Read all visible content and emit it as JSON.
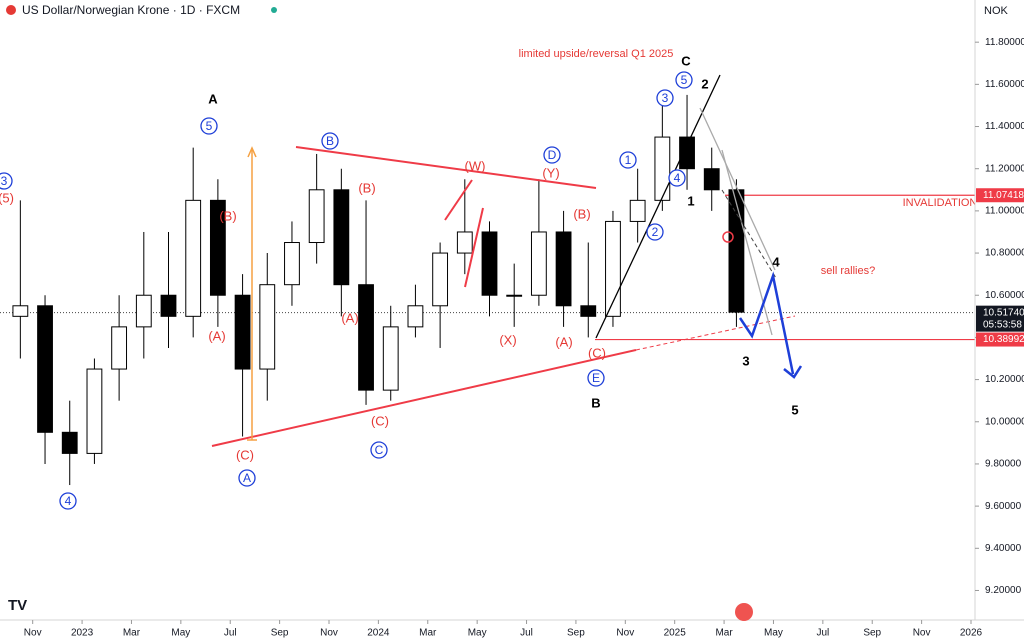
{
  "chart_data": {
    "type": "candlestick",
    "title": "US Dollar/Norwegian Krone · 1D · FXCM",
    "currency": "NOK",
    "color_up": "#ffffff",
    "color_down": "#000000",
    "x": [
      "2022-10",
      "2022-11",
      "2022-12",
      "2023-01",
      "2023-02",
      "2023-03",
      "2023-04",
      "2023-05",
      "2023-06",
      "2023-07",
      "2023-08",
      "2023-09",
      "2023-10",
      "2023-11",
      "2023-12",
      "2024-01",
      "2024-02",
      "2024-03",
      "2024-04",
      "2024-05",
      "2024-06",
      "2024-07",
      "2024-08",
      "2024-09",
      "2024-10",
      "2024-11",
      "2024-12",
      "2025-01",
      "2025-02",
      "2025-03"
    ],
    "open": [
      10.5,
      10.55,
      9.95,
      9.85,
      10.25,
      10.45,
      10.6,
      10.5,
      11.05,
      10.6,
      10.25,
      10.65,
      10.85,
      11.1,
      10.65,
      10.15,
      10.45,
      10.55,
      10.8,
      10.9,
      10.6,
      10.6,
      10.9,
      10.55,
      10.5,
      10.95,
      11.05,
      11.35,
      11.2,
      11.1
    ],
    "high": [
      11.05,
      10.6,
      10.1,
      10.3,
      10.6,
      10.9,
      10.9,
      11.3,
      11.15,
      10.7,
      10.8,
      10.95,
      11.27,
      11.2,
      11.05,
      10.55,
      10.65,
      10.85,
      11.15,
      10.95,
      10.75,
      11.15,
      11.0,
      10.85,
      11.0,
      11.2,
      11.55,
      11.55,
      11.3,
      11.15
    ],
    "low": [
      10.3,
      9.8,
      9.7,
      9.8,
      10.1,
      10.3,
      10.35,
      10.4,
      10.45,
      9.93,
      10.1,
      10.55,
      10.75,
      10.5,
      10.08,
      10.1,
      10.4,
      10.35,
      10.7,
      10.5,
      10.45,
      10.55,
      10.45,
      10.4,
      10.45,
      10.85,
      11.0,
      11.1,
      11.0,
      10.45
    ],
    "close": [
      10.55,
      9.95,
      9.85,
      10.25,
      10.45,
      10.6,
      10.5,
      11.05,
      10.6,
      10.25,
      10.65,
      10.85,
      11.1,
      10.65,
      10.15,
      10.45,
      10.55,
      10.8,
      10.9,
      10.6,
      10.6,
      10.9,
      10.55,
      10.5,
      10.95,
      11.05,
      11.35,
      11.2,
      11.1,
      10.52
    ],
    "xlim": [
      "2022-10",
      "2026-01"
    ],
    "xticks": [
      {
        "value": "2022-11",
        "label": "Nov"
      },
      {
        "value": "2023-01",
        "label": "2023"
      },
      {
        "value": "2023-03",
        "label": "Mar"
      },
      {
        "value": "2023-05",
        "label": "May"
      },
      {
        "value": "2023-07",
        "label": "Jul"
      },
      {
        "value": "2023-09",
        "label": "Sep"
      },
      {
        "value": "2023-11",
        "label": "Nov"
      },
      {
        "value": "2024-01",
        "label": "2024"
      },
      {
        "value": "2024-03",
        "label": "Mar"
      },
      {
        "value": "2024-05",
        "label": "May"
      },
      {
        "value": "2024-07",
        "label": "Jul"
      },
      {
        "value": "2024-09",
        "label": "Sep"
      },
      {
        "value": "2024-11",
        "label": "Nov"
      },
      {
        "value": "2025-01",
        "label": "2025"
      },
      {
        "value": "2025-03",
        "label": "Mar"
      },
      {
        "value": "2025-05",
        "label": "May"
      },
      {
        "value": "2025-07",
        "label": "Jul"
      },
      {
        "value": "2025-09",
        "label": "Sep"
      },
      {
        "value": "2025-11",
        "label": "Nov"
      },
      {
        "value": "2026-01",
        "label": "2026"
      }
    ],
    "ylim": [
      9.06,
      12.0
    ],
    "yticks": [
      {
        "value": 11.8,
        "label": "11.80000"
      },
      {
        "value": 11.6,
        "label": "11.60000"
      },
      {
        "value": 11.4,
        "label": "11.40000"
      },
      {
        "value": 11.2,
        "label": "11.20000"
      },
      {
        "value": 11.0,
        "label": "11.00000"
      },
      {
        "value": 10.8,
        "label": "10.80000"
      },
      {
        "value": 10.6,
        "label": "10.60000"
      },
      {
        "value": 10.4,
        "label": "10.40000"
      },
      {
        "value": 10.2,
        "label": "10.20000"
      },
      {
        "value": 10.0,
        "label": "10.00000"
      },
      {
        "value": 9.8,
        "label": "9.80000"
      },
      {
        "value": 9.6,
        "label": "9.60000"
      },
      {
        "value": 9.4,
        "label": "9.40000"
      },
      {
        "value": 9.2,
        "label": "9.20000"
      }
    ],
    "invalidation_level": 11.07418,
    "last_price": {
      "value": 10.5174,
      "label": "10.51740"
    },
    "countdown": "05:53:58",
    "support_level": 10.38992,
    "annotations": [
      {
        "text": "3",
        "color": "#1e3fd8",
        "circled": true
      },
      {
        "text": "(5)",
        "color": "#e53935",
        "circled": false
      },
      {
        "text": "A",
        "color": "#000000",
        "circled": false
      },
      {
        "text": "5",
        "color": "#1e3fd8",
        "circled": true
      },
      {
        "text": "(B)",
        "color": "#e53935",
        "circled": false
      },
      {
        "text": "(A)",
        "color": "#e53935",
        "circled": false
      },
      {
        "text": "(C)",
        "color": "#e53935",
        "circled": false
      },
      {
        "text": "A",
        "color": "#1e3fd8",
        "circled": true
      },
      {
        "text": "4",
        "color": "#1e3fd8",
        "circled": true
      },
      {
        "text": "B",
        "color": "#1e3fd8",
        "circled": true
      },
      {
        "text": "(B)",
        "color": "#e53935",
        "circled": false
      },
      {
        "text": "(A)",
        "color": "#e53935",
        "circled": false
      },
      {
        "text": "(C)",
        "color": "#e53935",
        "circled": false
      },
      {
        "text": "C",
        "color": "#1e3fd8",
        "circled": true
      },
      {
        "text": "(W)",
        "color": "#e53935",
        "circled": false
      },
      {
        "text": "D",
        "color": "#1e3fd8",
        "circled": true
      },
      {
        "text": "(Y)",
        "color": "#e53935",
        "circled": false
      },
      {
        "text": "(B)",
        "color": "#e53935",
        "circled": false
      },
      {
        "text": "(X)",
        "color": "#e53935",
        "circled": false
      },
      {
        "text": "(A)",
        "color": "#e53935",
        "circled": false
      },
      {
        "text": "(C)",
        "color": "#e53935",
        "circled": false
      },
      {
        "text": "E",
        "color": "#1e3fd8",
        "circled": true
      },
      {
        "text": "B",
        "color": "#000000",
        "circled": false
      },
      {
        "text": "1",
        "color": "#1e3fd8",
        "circled": true
      },
      {
        "text": "2",
        "color": "#1e3fd8",
        "circled": true
      },
      {
        "text": "3",
        "color": "#1e3fd8",
        "circled": true
      },
      {
        "text": "4",
        "color": "#1e3fd8",
        "circled": true
      },
      {
        "text": "5",
        "color": "#1e3fd8",
        "circled": true
      },
      {
        "text": "C",
        "color": "#000000",
        "circled": false
      },
      {
        "text": "2",
        "color": "#000000",
        "circled": false
      },
      {
        "text": "1",
        "color": "#000000",
        "circled": false
      },
      {
        "text": "4",
        "color": "#000000",
        "circled": false
      },
      {
        "text": "3",
        "color": "#000000",
        "circled": false
      },
      {
        "text": "5",
        "color": "#000000",
        "circled": false
      },
      {
        "text": "limited upside/reversal Q1 2025",
        "color": "#e53935",
        "circled": false
      },
      {
        "text": "sell rallies?",
        "color": "#e53935",
        "circled": false
      },
      {
        "text": "INVALIDATION",
        "color": "#e53935",
        "circled": false
      }
    ]
  }
}
